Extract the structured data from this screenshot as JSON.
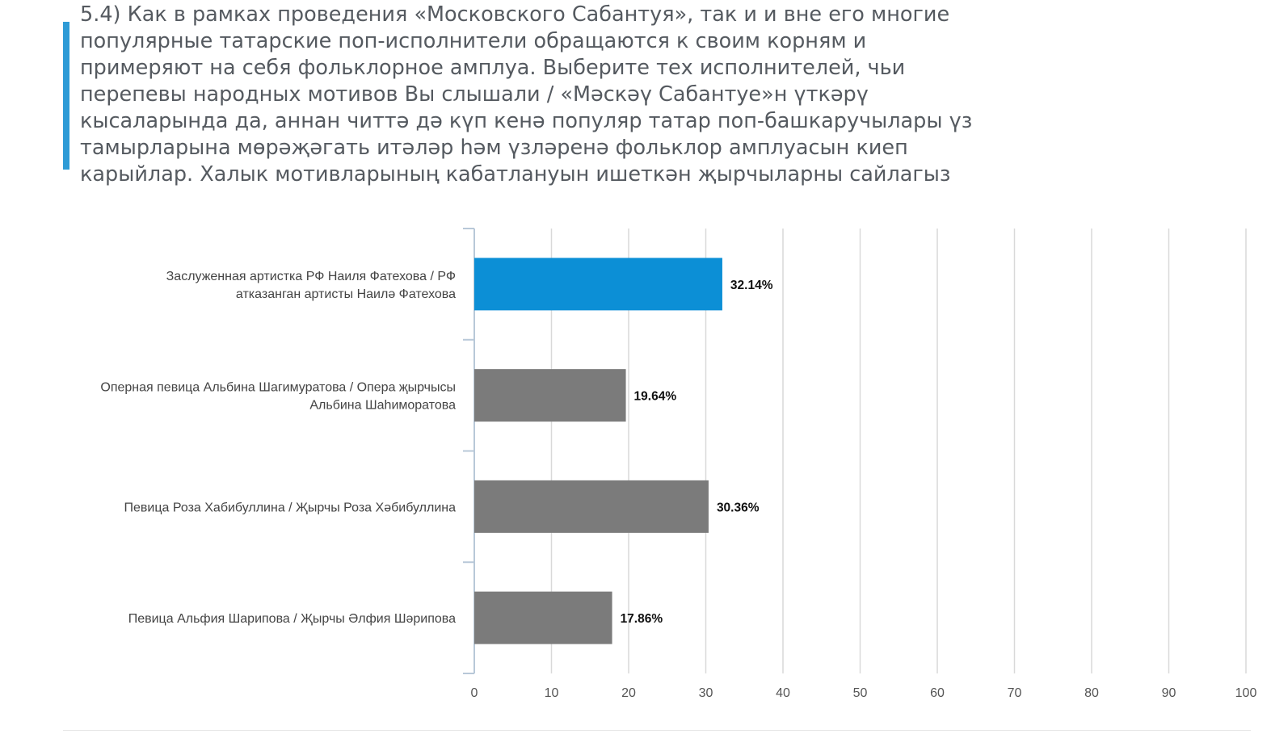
{
  "question": {
    "lines": [
      "5.4) Как в рамках проведения «Московского Сабантуя», так и и вне его многие",
      "популярные татарские поп-исполнители обращаются к своим корням и",
      "примеряют на себя фольклорное амплуа. Выберите тех исполнителей, чьи",
      "перепевы народных мотивов Вы слышали / «Мәскәү Сабантуе»н үткәрү",
      "кысаларында да, аннан читтә дә күп кенә популяр татар поп-башкаручылары үз",
      "тамырларына мөрәҗәгать итәләр һәм үзләренә фольклор амплуасын киеп",
      "карыйлар. Халык мотивларының кабатлануын ишеткән җырчыларны сайлагыз"
    ],
    "accent_color": "#2e9bd6"
  },
  "chart_data": {
    "type": "bar",
    "orientation": "horizontal",
    "categories": [
      [
        "Заслуженная артистка РФ Наиля Фатехова / РФ",
        "атказанган артисты Наилә Фатехова"
      ],
      [
        "Оперная певица Альбина Шагимуратова / Опера җырчысы",
        "Альбина Шаһиморатова"
      ],
      [
        "Певица Роза Хабибуллина / Җырчы Роза Хәбибуллина"
      ],
      [
        "Певица Альфия Шарипова / Җырчы Әлфия Шәрипова"
      ]
    ],
    "values": [
      32.14,
      19.64,
      30.36,
      17.86
    ],
    "value_labels": [
      "32.14%",
      "19.64%",
      "30.36%",
      "17.86%"
    ],
    "bar_colors": [
      "#0c8fd6",
      "#7b7b7b",
      "#7b7b7b",
      "#7b7b7b"
    ],
    "xlim": [
      0,
      100
    ],
    "xticks": [
      0,
      10,
      20,
      30,
      40,
      50,
      60,
      70,
      80,
      90,
      100
    ],
    "grid": true,
    "grid_color": "#d9d9d9",
    "axis_color": "#b8c8d8",
    "legend": "none"
  }
}
